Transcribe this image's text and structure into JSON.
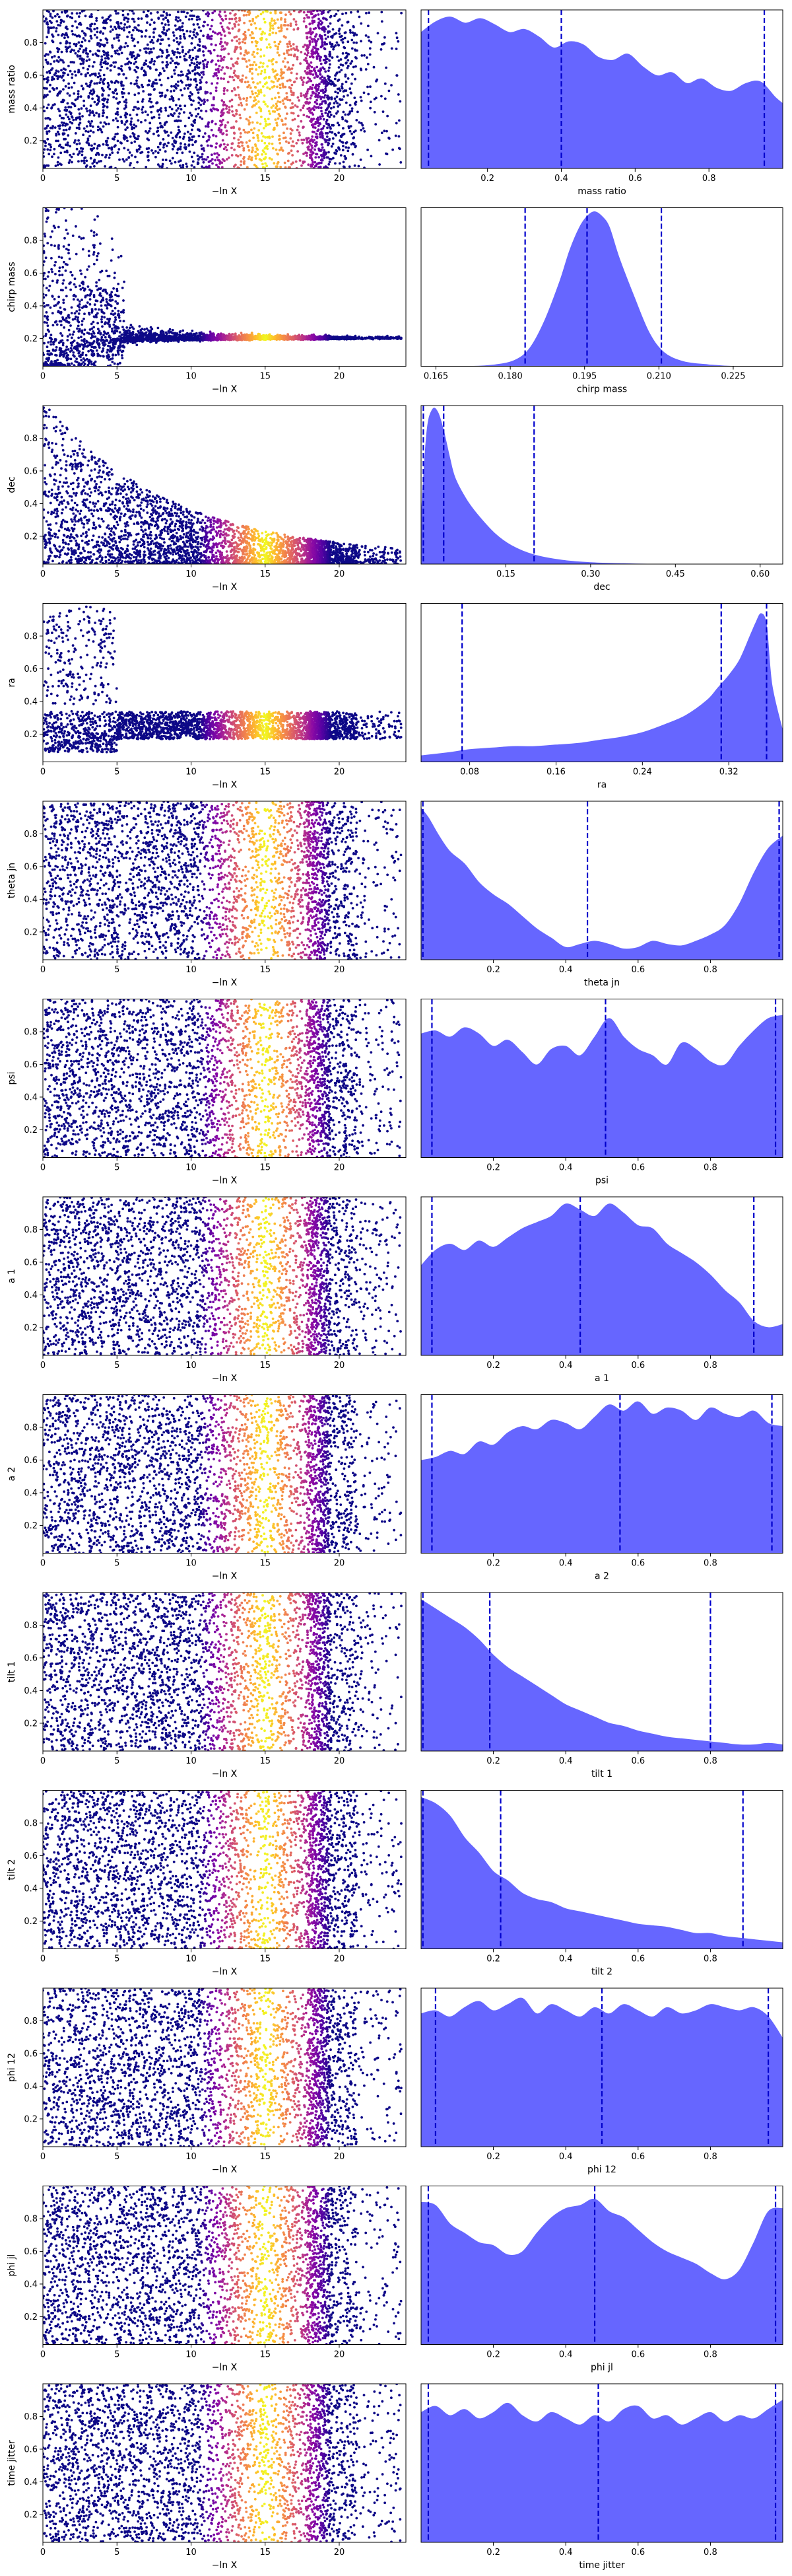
{
  "figure": {
    "scatter_xlabel": "−ln X",
    "colormap": "plasma",
    "fill_color": "#6666ff",
    "quantile_color": "#0000cc"
  },
  "chart_data": [
    {
      "type": "scatter",
      "name": "mass ratio",
      "trace_label": "mass ratio",
      "hist_label": "mass ratio",
      "trace_xlim": [
        0,
        24.5
      ],
      "trace_xticks": [
        0,
        5,
        10,
        15,
        20
      ],
      "trace_yticks": [
        0.2,
        0.4,
        0.6,
        0.8
      ],
      "trace_ylim": [
        0.03,
        1.0
      ],
      "trace_shape": "uniform",
      "hist_xlim": [
        0.02,
        1.0
      ],
      "hist_xticks": [
        0.2,
        0.4,
        0.6,
        0.8
      ],
      "hist_xticklabels": [
        "0.2",
        "0.4",
        "0.6",
        "0.8"
      ],
      "density_x": [
        0.02,
        0.06,
        0.1,
        0.14,
        0.18,
        0.22,
        0.26,
        0.3,
        0.34,
        0.38,
        0.42,
        0.46,
        0.5,
        0.54,
        0.58,
        0.62,
        0.66,
        0.7,
        0.74,
        0.78,
        0.82,
        0.86,
        0.9,
        0.94,
        0.98,
        1.0
      ],
      "density_y": [
        0.88,
        0.95,
        0.98,
        0.94,
        0.97,
        0.93,
        0.88,
        0.9,
        0.85,
        0.78,
        0.82,
        0.8,
        0.72,
        0.7,
        0.74,
        0.66,
        0.6,
        0.62,
        0.55,
        0.58,
        0.52,
        0.5,
        0.55,
        0.56,
        0.46,
        0.42
      ],
      "quantiles": [
        0.04,
        0.4,
        0.95
      ]
    },
    {
      "type": "scatter",
      "name": "chirp mass",
      "trace_label": "chirp mass",
      "hist_label": "chirp mass",
      "trace_xlim": [
        0,
        24.5
      ],
      "trace_xticks": [
        0,
        5,
        10,
        15,
        20
      ],
      "trace_yticks": [
        0.2,
        0.4,
        0.6,
        0.8
      ],
      "trace_ylim": [
        0.03,
        1.0
      ],
      "trace_shape": "converge",
      "trace_center": 0.2,
      "hist_xlim": [
        0.162,
        0.235
      ],
      "hist_xticks": [
        0.165,
        0.18,
        0.195,
        0.21,
        0.225
      ],
      "hist_xticklabels": [
        "0.165",
        "0.180",
        "0.195",
        "0.210",
        "0.225"
      ],
      "density_x": [
        0.162,
        0.172,
        0.177,
        0.181,
        0.184,
        0.187,
        0.19,
        0.192,
        0.194,
        0.1955,
        0.197,
        0.1985,
        0.2,
        0.202,
        0.205,
        0.208,
        0.211,
        0.215,
        0.22,
        0.225,
        0.235
      ],
      "density_y": [
        0.0,
        0.0,
        0.01,
        0.04,
        0.12,
        0.3,
        0.55,
        0.75,
        0.9,
        0.97,
        1.0,
        0.97,
        0.9,
        0.7,
        0.45,
        0.22,
        0.09,
        0.03,
        0.01,
        0.0,
        0.0
      ],
      "quantiles": [
        0.183,
        0.1955,
        0.2105
      ]
    },
    {
      "type": "scatter",
      "name": "dec",
      "trace_label": "dec",
      "hist_label": "dec",
      "trace_xlim": [
        0,
        24.5
      ],
      "trace_xticks": [
        0,
        5,
        10,
        15,
        20
      ],
      "trace_yticks": [
        0.2,
        0.4,
        0.6,
        0.8
      ],
      "trace_ylim": [
        0.03,
        1.0
      ],
      "trace_shape": "decay",
      "trace_center": 0.06,
      "hist_xlim": [
        0.0,
        0.64
      ],
      "hist_xticks": [
        0.15,
        0.3,
        0.45,
        0.6
      ],
      "hist_xticklabels": [
        "0.15",
        "0.30",
        "0.45",
        "0.60"
      ],
      "density_x": [
        0.0,
        0.01,
        0.02,
        0.03,
        0.04,
        0.05,
        0.06,
        0.08,
        0.1,
        0.13,
        0.16,
        0.2,
        0.25,
        0.3,
        0.35,
        0.4,
        0.5,
        0.64
      ],
      "density_y": [
        0.3,
        0.85,
        1.0,
        0.98,
        0.86,
        0.7,
        0.56,
        0.42,
        0.32,
        0.2,
        0.12,
        0.06,
        0.025,
        0.01,
        0.004,
        0.0,
        0.0,
        0.0
      ],
      "quantiles": [
        0.004,
        0.04,
        0.2
      ]
    },
    {
      "type": "scatter",
      "name": "ra",
      "trace_label": "ra",
      "hist_label": "ra",
      "trace_xlim": [
        0,
        24.5
      ],
      "trace_xticks": [
        0,
        5,
        10,
        15,
        20
      ],
      "trace_yticks": [
        0.2,
        0.4,
        0.6,
        0.8
      ],
      "trace_ylim": [
        0.03,
        1.0
      ],
      "trace_shape": "band_ra",
      "trace_center": 0.27,
      "hist_xlim": [
        0.035,
        0.37
      ],
      "hist_xticks": [
        0.08,
        0.16,
        0.24,
        0.32
      ],
      "hist_xticklabels": [
        "0.08",
        "0.16",
        "0.24",
        "0.32"
      ],
      "density_x": [
        0.035,
        0.06,
        0.08,
        0.1,
        0.12,
        0.14,
        0.16,
        0.18,
        0.2,
        0.22,
        0.24,
        0.26,
        0.28,
        0.3,
        0.31,
        0.32,
        0.33,
        0.34,
        0.345,
        0.35,
        0.355,
        0.36,
        0.37
      ],
      "density_y": [
        0.04,
        0.06,
        0.08,
        0.09,
        0.1,
        0.1,
        0.11,
        0.12,
        0.14,
        0.16,
        0.19,
        0.24,
        0.3,
        0.4,
        0.48,
        0.56,
        0.66,
        0.82,
        0.9,
        0.96,
        0.88,
        0.5,
        0.2
      ],
      "quantiles": [
        0.073,
        0.313,
        0.355
      ]
    },
    {
      "type": "scatter",
      "name": "theta jn",
      "trace_label": "theta jn",
      "hist_label": "theta jn",
      "trace_xlim": [
        0,
        24.5
      ],
      "trace_xticks": [
        0,
        5,
        10,
        15,
        20
      ],
      "trace_yticks": [
        0.2,
        0.4,
        0.6,
        0.8
      ],
      "trace_ylim": [
        0.03,
        1.0
      ],
      "trace_shape": "uniform",
      "hist_xlim": [
        0.0,
        1.0
      ],
      "hist_xticks": [
        0.2,
        0.4,
        0.6,
        0.8
      ],
      "hist_xticklabels": [
        "0.2",
        "0.4",
        "0.6",
        "0.8"
      ],
      "density_x": [
        0.0,
        0.02,
        0.05,
        0.08,
        0.12,
        0.16,
        0.2,
        0.24,
        0.28,
        0.32,
        0.36,
        0.4,
        0.44,
        0.48,
        0.52,
        0.56,
        0.6,
        0.64,
        0.68,
        0.72,
        0.76,
        0.8,
        0.84,
        0.88,
        0.92,
        0.96,
        1.0
      ],
      "density_y": [
        0.98,
        0.92,
        0.8,
        0.7,
        0.62,
        0.5,
        0.42,
        0.36,
        0.28,
        0.2,
        0.14,
        0.08,
        0.1,
        0.12,
        0.1,
        0.07,
        0.08,
        0.12,
        0.1,
        0.09,
        0.12,
        0.16,
        0.22,
        0.36,
        0.56,
        0.72,
        0.8
      ],
      "quantiles": [
        0.005,
        0.46,
        0.99
      ]
    },
    {
      "type": "scatter",
      "name": "psi",
      "trace_label": "psi",
      "hist_label": "psi",
      "trace_xlim": [
        0,
        24.5
      ],
      "trace_xticks": [
        0,
        5,
        10,
        15,
        20
      ],
      "trace_yticks": [
        0.2,
        0.4,
        0.6,
        0.8
      ],
      "trace_ylim": [
        0.03,
        1.0
      ],
      "trace_shape": "uniform",
      "hist_xlim": [
        0.0,
        1.0
      ],
      "hist_xticks": [
        0.2,
        0.4,
        0.6,
        0.8
      ],
      "hist_xticklabels": [
        "0.2",
        "0.4",
        "0.6",
        "0.8"
      ],
      "density_x": [
        0.0,
        0.04,
        0.08,
        0.12,
        0.16,
        0.2,
        0.24,
        0.28,
        0.32,
        0.36,
        0.4,
        0.44,
        0.48,
        0.52,
        0.56,
        0.6,
        0.64,
        0.68,
        0.72,
        0.76,
        0.8,
        0.84,
        0.88,
        0.92,
        0.96,
        1.0
      ],
      "density_y": [
        0.8,
        0.82,
        0.78,
        0.84,
        0.8,
        0.72,
        0.76,
        0.68,
        0.6,
        0.7,
        0.72,
        0.66,
        0.78,
        0.9,
        0.78,
        0.7,
        0.66,
        0.6,
        0.74,
        0.7,
        0.62,
        0.6,
        0.72,
        0.82,
        0.9,
        0.92
      ],
      "quantiles": [
        0.03,
        0.51,
        0.98
      ]
    },
    {
      "type": "scatter",
      "name": "a 1",
      "trace_label": "a 1",
      "hist_label": "a 1",
      "trace_xlim": [
        0,
        24.5
      ],
      "trace_xticks": [
        0,
        5,
        10,
        15,
        20
      ],
      "trace_yticks": [
        0.2,
        0.4,
        0.6,
        0.8
      ],
      "trace_ylim": [
        0.03,
        1.0
      ],
      "trace_shape": "uniform",
      "hist_xlim": [
        0.0,
        1.0
      ],
      "hist_xticks": [
        0.2,
        0.4,
        0.6,
        0.8
      ],
      "hist_xticklabels": [
        "0.2",
        "0.4",
        "0.6",
        "0.8"
      ],
      "density_x": [
        0.0,
        0.04,
        0.08,
        0.12,
        0.16,
        0.2,
        0.24,
        0.28,
        0.32,
        0.36,
        0.4,
        0.44,
        0.48,
        0.52,
        0.56,
        0.6,
        0.64,
        0.68,
        0.72,
        0.76,
        0.8,
        0.84,
        0.88,
        0.92,
        0.96,
        1.0
      ],
      "density_y": [
        0.58,
        0.68,
        0.72,
        0.68,
        0.74,
        0.7,
        0.76,
        0.82,
        0.86,
        0.9,
        0.98,
        0.94,
        0.9,
        0.98,
        0.92,
        0.84,
        0.82,
        0.72,
        0.66,
        0.6,
        0.52,
        0.42,
        0.34,
        0.22,
        0.18,
        0.2
      ],
      "quantiles": [
        0.03,
        0.44,
        0.92
      ]
    },
    {
      "type": "scatter",
      "name": "a 2",
      "trace_label": "a 2",
      "hist_label": "a 2",
      "trace_xlim": [
        0,
        24.5
      ],
      "trace_xticks": [
        0,
        5,
        10,
        15,
        20
      ],
      "trace_yticks": [
        0.2,
        0.4,
        0.6,
        0.8
      ],
      "trace_ylim": [
        0.03,
        1.0
      ],
      "trace_shape": "uniform",
      "hist_xlim": [
        0.0,
        1.0
      ],
      "hist_xticks": [
        0.2,
        0.4,
        0.6,
        0.8
      ],
      "hist_xticklabels": [
        "0.2",
        "0.4",
        "0.6",
        "0.8"
      ],
      "density_x": [
        0.0,
        0.04,
        0.08,
        0.12,
        0.16,
        0.2,
        0.24,
        0.28,
        0.32,
        0.36,
        0.4,
        0.44,
        0.48,
        0.52,
        0.56,
        0.6,
        0.64,
        0.68,
        0.72,
        0.76,
        0.8,
        0.84,
        0.88,
        0.92,
        0.96,
        1.0
      ],
      "density_y": [
        0.6,
        0.62,
        0.66,
        0.64,
        0.72,
        0.7,
        0.78,
        0.82,
        0.8,
        0.86,
        0.84,
        0.8,
        0.88,
        0.96,
        0.92,
        0.98,
        0.9,
        0.94,
        0.92,
        0.86,
        0.94,
        0.9,
        0.88,
        0.92,
        0.84,
        0.82
      ],
      "quantiles": [
        0.03,
        0.55,
        0.97
      ]
    },
    {
      "type": "scatter",
      "name": "tilt 1",
      "trace_label": "tilt 1",
      "hist_label": "tilt 1",
      "trace_xlim": [
        0,
        24.5
      ],
      "trace_xticks": [
        0,
        5,
        10,
        15,
        20
      ],
      "trace_yticks": [
        0.2,
        0.4,
        0.6,
        0.8
      ],
      "trace_ylim": [
        0.03,
        1.0
      ],
      "trace_shape": "uniform",
      "hist_xlim": [
        0.0,
        1.0
      ],
      "hist_xticks": [
        0.2,
        0.4,
        0.6,
        0.8
      ],
      "hist_xticklabels": [
        "0.2",
        "0.4",
        "0.6",
        "0.8"
      ],
      "density_x": [
        0.0,
        0.04,
        0.08,
        0.12,
        0.16,
        0.2,
        0.24,
        0.28,
        0.32,
        0.36,
        0.4,
        0.44,
        0.48,
        0.52,
        0.56,
        0.6,
        0.64,
        0.68,
        0.72,
        0.76,
        0.8,
        0.84,
        0.88,
        0.92,
        0.96,
        1.0
      ],
      "density_y": [
        0.98,
        0.92,
        0.86,
        0.8,
        0.72,
        0.62,
        0.54,
        0.48,
        0.42,
        0.36,
        0.3,
        0.26,
        0.22,
        0.18,
        0.16,
        0.13,
        0.11,
        0.09,
        0.08,
        0.07,
        0.06,
        0.05,
        0.04,
        0.04,
        0.05,
        0.04
      ],
      "quantiles": [
        0.005,
        0.19,
        0.8
      ]
    },
    {
      "type": "scatter",
      "name": "tilt 2",
      "trace_label": "tilt 2",
      "hist_label": "tilt 2",
      "trace_xlim": [
        0,
        24.5
      ],
      "trace_xticks": [
        0,
        5,
        10,
        15,
        20
      ],
      "trace_yticks": [
        0.2,
        0.4,
        0.6,
        0.8
      ],
      "trace_ylim": [
        0.03,
        1.0
      ],
      "trace_shape": "uniform",
      "hist_xlim": [
        0.0,
        1.0
      ],
      "hist_xticks": [
        0.2,
        0.4,
        0.6,
        0.8
      ],
      "hist_xticklabels": [
        "0.2",
        "0.4",
        "0.6",
        "0.8"
      ],
      "density_x": [
        0.0,
        0.04,
        0.08,
        0.12,
        0.16,
        0.2,
        0.24,
        0.28,
        0.32,
        0.36,
        0.4,
        0.44,
        0.48,
        0.52,
        0.56,
        0.6,
        0.64,
        0.68,
        0.72,
        0.76,
        0.8,
        0.84,
        0.88,
        0.92,
        0.96,
        1.0
      ],
      "density_y": [
        0.98,
        0.94,
        0.86,
        0.72,
        0.62,
        0.5,
        0.44,
        0.36,
        0.32,
        0.3,
        0.26,
        0.24,
        0.22,
        0.2,
        0.18,
        0.16,
        0.15,
        0.14,
        0.12,
        0.1,
        0.1,
        0.08,
        0.07,
        0.06,
        0.05,
        0.04
      ],
      "quantiles": [
        0.005,
        0.22,
        0.89
      ]
    },
    {
      "type": "scatter",
      "name": "phi 12",
      "trace_label": "phi 12",
      "hist_label": "phi 12",
      "trace_xlim": [
        0,
        24.5
      ],
      "trace_xticks": [
        0,
        5,
        10,
        15,
        20
      ],
      "trace_yticks": [
        0.2,
        0.4,
        0.6,
        0.8
      ],
      "trace_ylim": [
        0.03,
        1.0
      ],
      "trace_shape": "uniform",
      "hist_xlim": [
        0.0,
        1.0
      ],
      "hist_xticks": [
        0.2,
        0.4,
        0.6,
        0.8
      ],
      "hist_xticklabels": [
        "0.2",
        "0.4",
        "0.6",
        "0.8"
      ],
      "density_x": [
        0.0,
        0.04,
        0.08,
        0.12,
        0.16,
        0.2,
        0.24,
        0.28,
        0.32,
        0.36,
        0.4,
        0.44,
        0.48,
        0.52,
        0.56,
        0.6,
        0.64,
        0.68,
        0.72,
        0.76,
        0.8,
        0.84,
        0.88,
        0.92,
        0.96,
        1.0
      ],
      "density_y": [
        0.86,
        0.88,
        0.84,
        0.9,
        0.94,
        0.88,
        0.92,
        0.96,
        0.86,
        0.92,
        0.88,
        0.84,
        0.9,
        0.86,
        0.92,
        0.88,
        0.84,
        0.9,
        0.86,
        0.88,
        0.92,
        0.9,
        0.88,
        0.9,
        0.84,
        0.7
      ],
      "quantiles": [
        0.04,
        0.5,
        0.96
      ]
    },
    {
      "type": "scatter",
      "name": "phi jl",
      "trace_label": "phi jl",
      "hist_label": "phi jl",
      "trace_xlim": [
        0,
        24.5
      ],
      "trace_xticks": [
        0,
        5,
        10,
        15,
        20
      ],
      "trace_yticks": [
        0.2,
        0.4,
        0.6,
        0.8
      ],
      "trace_ylim": [
        0.03,
        1.0
      ],
      "trace_shape": "uniform",
      "hist_xlim": [
        0.0,
        1.0
      ],
      "hist_xticks": [
        0.2,
        0.4,
        0.6,
        0.8
      ],
      "hist_xticklabels": [
        "0.2",
        "0.4",
        "0.6",
        "0.8"
      ],
      "density_x": [
        0.0,
        0.04,
        0.08,
        0.12,
        0.16,
        0.2,
        0.24,
        0.28,
        0.32,
        0.36,
        0.4,
        0.44,
        0.48,
        0.52,
        0.56,
        0.6,
        0.64,
        0.68,
        0.72,
        0.76,
        0.8,
        0.84,
        0.88,
        0.92,
        0.96,
        1.0
      ],
      "density_y": [
        0.92,
        0.9,
        0.78,
        0.72,
        0.66,
        0.64,
        0.58,
        0.6,
        0.72,
        0.82,
        0.88,
        0.9,
        0.94,
        0.86,
        0.82,
        0.74,
        0.66,
        0.6,
        0.56,
        0.52,
        0.46,
        0.42,
        0.48,
        0.66,
        0.86,
        0.88
      ],
      "quantiles": [
        0.02,
        0.48,
        0.98
      ]
    },
    {
      "type": "scatter",
      "name": "time jitter",
      "trace_label": "time jitter",
      "hist_label": "time jitter",
      "trace_xlim": [
        0,
        24.5
      ],
      "trace_xticks": [
        0,
        5,
        10,
        15,
        20
      ],
      "trace_yticks": [
        0.2,
        0.4,
        0.6,
        0.8
      ],
      "trace_ylim": [
        0.03,
        1.0
      ],
      "trace_shape": "uniform",
      "hist_xlim": [
        0.0,
        1.0
      ],
      "hist_xticks": [
        0.2,
        0.4,
        0.6,
        0.8
      ],
      "hist_xticklabels": [
        "0.2",
        "0.4",
        "0.6",
        "0.8"
      ],
      "density_x": [
        0.0,
        0.04,
        0.08,
        0.12,
        0.16,
        0.2,
        0.24,
        0.28,
        0.32,
        0.36,
        0.4,
        0.44,
        0.48,
        0.52,
        0.56,
        0.6,
        0.64,
        0.68,
        0.72,
        0.76,
        0.8,
        0.84,
        0.88,
        0.92,
        0.96,
        1.0
      ],
      "density_y": [
        0.84,
        0.88,
        0.82,
        0.86,
        0.8,
        0.84,
        0.9,
        0.82,
        0.78,
        0.84,
        0.8,
        0.76,
        0.82,
        0.78,
        0.86,
        0.88,
        0.8,
        0.82,
        0.76,
        0.8,
        0.84,
        0.78,
        0.82,
        0.8,
        0.86,
        0.92
      ],
      "quantiles": [
        0.02,
        0.49,
        0.98
      ]
    }
  ]
}
